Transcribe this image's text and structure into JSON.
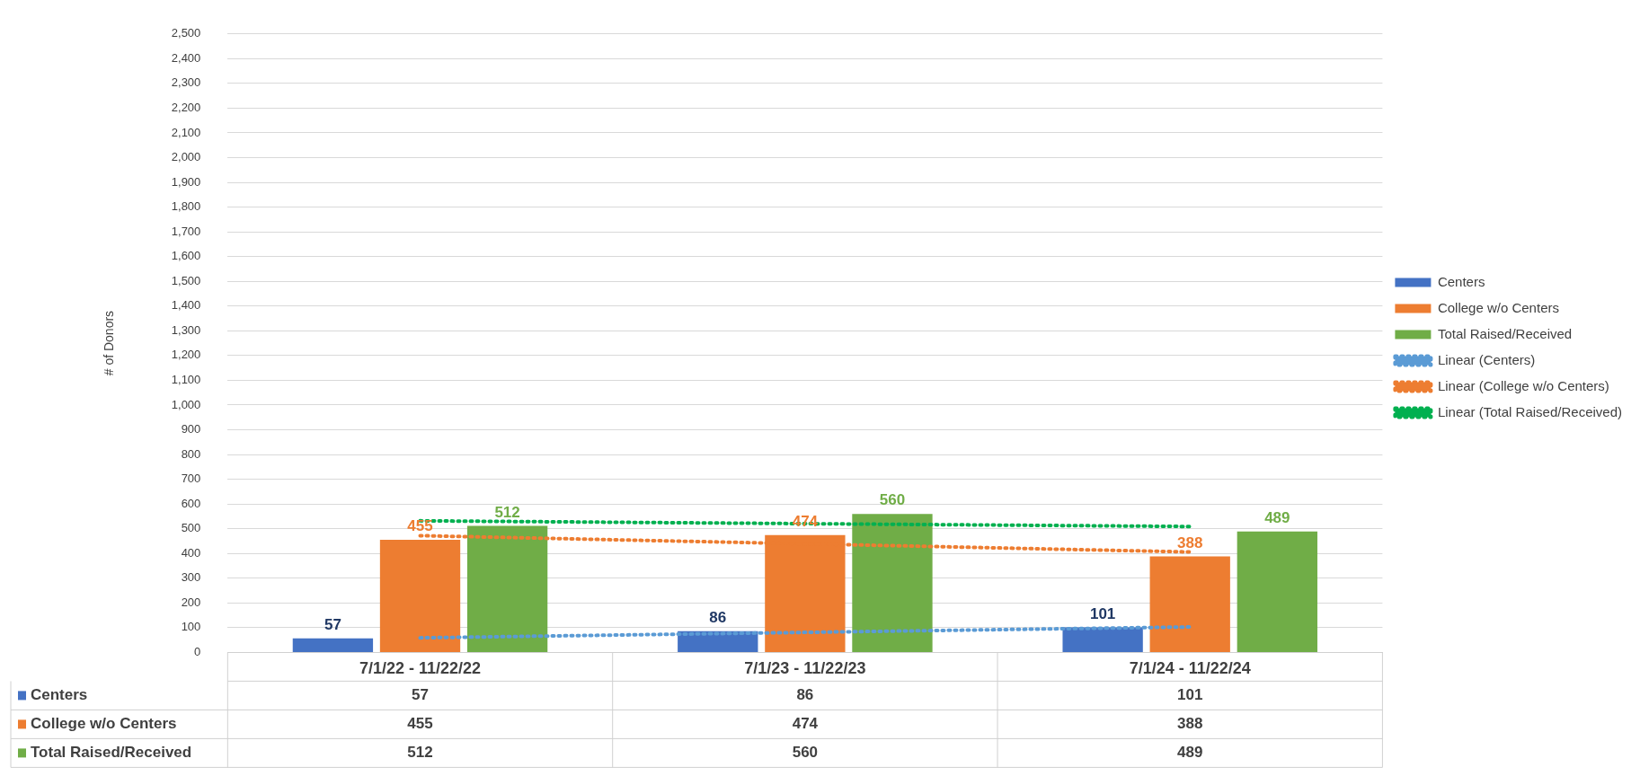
{
  "chart_data": {
    "type": "bar",
    "ylabel": "# of Donors",
    "categories": [
      "7/1/22 - 11/22/22",
      "7/1/23 - 11/22/23",
      "7/1/24 - 11/22/24"
    ],
    "series": [
      {
        "name": "Centers",
        "color": "#4472c4",
        "values": [
          57,
          86,
          101
        ],
        "value_labels": [
          "57",
          "86",
          "101"
        ]
      },
      {
        "name": "College w/o Centers",
        "color": "#ed7d31",
        "values": [
          455,
          474,
          388
        ],
        "value_labels": [
          "455",
          "474",
          "388"
        ]
      },
      {
        "name": "Total Raised/Received",
        "color": "#70ad47",
        "values": [
          512,
          560,
          489
        ],
        "value_labels": [
          "512",
          "560",
          "489"
        ]
      },
      {
        "name": "Linear (Centers)",
        "type": "line",
        "color": "#5b9bd5",
        "x": [
          "7/1/22 - 11/22/22",
          "7/1/24 - 11/22/24"
        ],
        "values": [
          59,
          103
        ]
      },
      {
        "name": "Linear (College w/o Centers)",
        "type": "line",
        "color": "#ed7d31",
        "x": [
          "7/1/22 - 11/22/22",
          "7/1/24 - 11/22/24"
        ],
        "values": [
          472,
          406
        ]
      },
      {
        "name": "Linear (Total Raised/Received)",
        "type": "line",
        "color": "#00b050",
        "x": [
          "7/1/22 - 11/22/22",
          "7/1/24 - 11/22/24"
        ],
        "values": [
          532,
          509
        ]
      }
    ],
    "ylim": [
      0,
      2500
    ],
    "yticks": [
      0,
      100,
      200,
      300,
      400,
      500,
      600,
      700,
      800,
      900,
      {
        "value": 1000,
        "label": "1,000"
      },
      {
        "value": 1100,
        "label": "1,100"
      },
      {
        "value": 1200,
        "label": "1,200"
      },
      {
        "value": 1300,
        "label": "1,300"
      },
      {
        "value": 1400,
        "label": "1,400"
      },
      {
        "value": 1500,
        "label": "1,500"
      },
      {
        "value": 1600,
        "label": "1,600"
      },
      {
        "value": 1700,
        "label": "1,700"
      },
      {
        "value": 1800,
        "label": "1,800"
      },
      {
        "value": 1900,
        "label": "1,900"
      },
      {
        "value": 2000,
        "label": "2,000"
      },
      {
        "value": 2100,
        "label": "2,100"
      },
      {
        "value": 2200,
        "label": "2,200"
      },
      {
        "value": 2300,
        "label": "2,300"
      },
      {
        "value": 2400,
        "label": "2,400"
      },
      {
        "value": 2500,
        "label": "2,500"
      }
    ],
    "grid": "y",
    "legend": "right",
    "line_style": "dotted",
    "marker": "none"
  }
}
